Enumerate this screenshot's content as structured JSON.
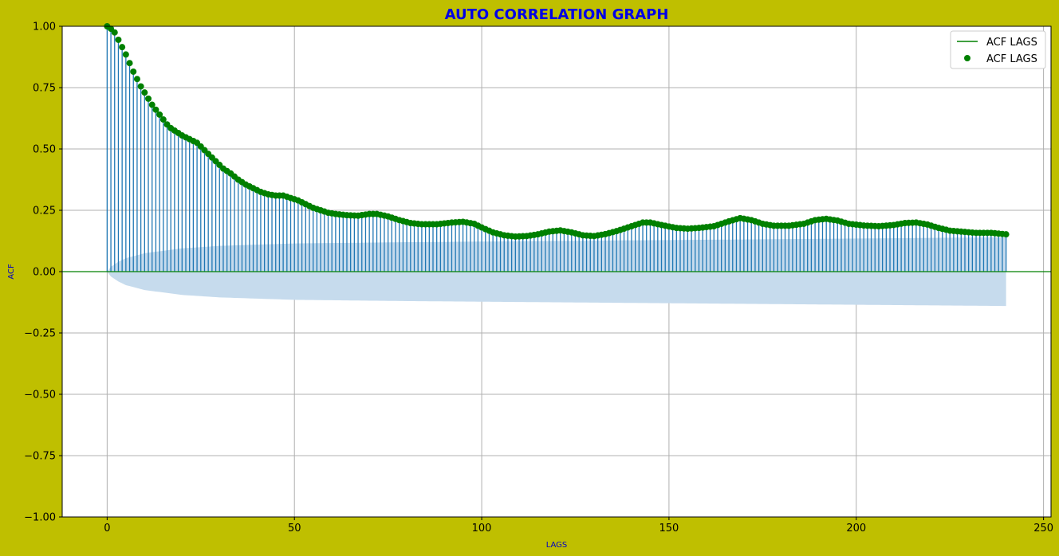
{
  "chart_data": {
    "type": "stem",
    "title": "AUTO CORRELATION GRAPH",
    "xlabel": "LAGS",
    "ylabel": "ACF",
    "xlim": [
      -12,
      252
    ],
    "ylim": [
      -1.0,
      1.0
    ],
    "x_ticks": [
      0,
      50,
      100,
      150,
      200,
      250
    ],
    "x_tick_labels": [
      "0",
      "50",
      "100",
      "150",
      "200",
      "250"
    ],
    "y_ticks": [
      -1.0,
      -0.75,
      -0.5,
      -0.25,
      0.0,
      0.25,
      0.5,
      0.75,
      1.0
    ],
    "y_tick_labels": [
      "−1.00",
      "−0.75",
      "−0.50",
      "−0.25",
      "0.00",
      "0.25",
      "0.50",
      "0.75",
      "1.00"
    ],
    "grid": true,
    "legend_position": "top-right",
    "legend": [
      {
        "label": "ACF LAGS",
        "marker": "line",
        "color": "#008000"
      },
      {
        "label": "ACF LAGS",
        "marker": "dot",
        "color": "#008000"
      }
    ],
    "colors": {
      "background": "#bfbf00",
      "plot_background": "#ffffff",
      "title": "#0000e6",
      "axis_label": "#0000c0",
      "stem": "#1f77b4",
      "marker": "#008000",
      "baseline": "#008000",
      "confidence_band": "#c6dbed",
      "grid": "#b0b0b0"
    },
    "lags": {
      "start": 0,
      "end": 240
    },
    "acf_keypoints": [
      [
        0,
        1.0
      ],
      [
        1,
        0.99
      ],
      [
        2,
        0.975
      ],
      [
        3,
        0.945
      ],
      [
        4,
        0.915
      ],
      [
        5,
        0.885
      ],
      [
        6,
        0.85
      ],
      [
        7,
        0.815
      ],
      [
        8,
        0.785
      ],
      [
        9,
        0.755
      ],
      [
        10,
        0.73
      ],
      [
        11,
        0.705
      ],
      [
        12,
        0.68
      ],
      [
        13,
        0.66
      ],
      [
        14,
        0.64
      ],
      [
        15,
        0.62
      ],
      [
        16,
        0.6
      ],
      [
        17,
        0.585
      ],
      [
        18,
        0.575
      ],
      [
        19,
        0.565
      ],
      [
        20,
        0.555
      ],
      [
        22,
        0.54
      ],
      [
        24,
        0.525
      ],
      [
        25,
        0.51
      ],
      [
        27,
        0.48
      ],
      [
        29,
        0.45
      ],
      [
        31,
        0.42
      ],
      [
        33,
        0.4
      ],
      [
        35,
        0.375
      ],
      [
        37,
        0.355
      ],
      [
        39,
        0.34
      ],
      [
        41,
        0.325
      ],
      [
        43,
        0.315
      ],
      [
        45,
        0.31
      ],
      [
        47,
        0.31
      ],
      [
        49,
        0.3
      ],
      [
        51,
        0.29
      ],
      [
        53,
        0.275
      ],
      [
        55,
        0.26
      ],
      [
        57,
        0.25
      ],
      [
        59,
        0.24
      ],
      [
        61,
        0.235
      ],
      [
        64,
        0.23
      ],
      [
        67,
        0.228
      ],
      [
        70,
        0.235
      ],
      [
        72,
        0.235
      ],
      [
        75,
        0.225
      ],
      [
        78,
        0.21
      ],
      [
        81,
        0.198
      ],
      [
        84,
        0.193
      ],
      [
        88,
        0.193
      ],
      [
        92,
        0.2
      ],
      [
        95,
        0.203
      ],
      [
        98,
        0.195
      ],
      [
        100,
        0.18
      ],
      [
        103,
        0.16
      ],
      [
        106,
        0.148
      ],
      [
        109,
        0.143
      ],
      [
        112,
        0.145
      ],
      [
        115,
        0.152
      ],
      [
        118,
        0.163
      ],
      [
        121,
        0.168
      ],
      [
        124,
        0.16
      ],
      [
        127,
        0.148
      ],
      [
        130,
        0.145
      ],
      [
        133,
        0.153
      ],
      [
        136,
        0.165
      ],
      [
        140,
        0.185
      ],
      [
        143,
        0.2
      ],
      [
        145,
        0.2
      ],
      [
        148,
        0.19
      ],
      [
        152,
        0.178
      ],
      [
        155,
        0.175
      ],
      [
        158,
        0.178
      ],
      [
        162,
        0.185
      ],
      [
        166,
        0.205
      ],
      [
        169,
        0.218
      ],
      [
        172,
        0.21
      ],
      [
        175,
        0.195
      ],
      [
        178,
        0.187
      ],
      [
        182,
        0.187
      ],
      [
        186,
        0.195
      ],
      [
        189,
        0.21
      ],
      [
        192,
        0.215
      ],
      [
        195,
        0.208
      ],
      [
        198,
        0.195
      ],
      [
        202,
        0.188
      ],
      [
        206,
        0.185
      ],
      [
        210,
        0.19
      ],
      [
        213,
        0.198
      ],
      [
        216,
        0.2
      ],
      [
        219,
        0.192
      ],
      [
        222,
        0.178
      ],
      [
        225,
        0.167
      ],
      [
        228,
        0.163
      ],
      [
        232,
        0.158
      ],
      [
        236,
        0.158
      ],
      [
        240,
        0.152
      ]
    ],
    "confidence_band_keypoints": [
      [
        1,
        0.02
      ],
      [
        3,
        0.04
      ],
      [
        5,
        0.055
      ],
      [
        10,
        0.075
      ],
      [
        20,
        0.095
      ],
      [
        30,
        0.105
      ],
      [
        50,
        0.115
      ],
      [
        80,
        0.12
      ],
      [
        120,
        0.125
      ],
      [
        160,
        0.13
      ],
      [
        200,
        0.135
      ],
      [
        240,
        0.14
      ]
    ]
  }
}
